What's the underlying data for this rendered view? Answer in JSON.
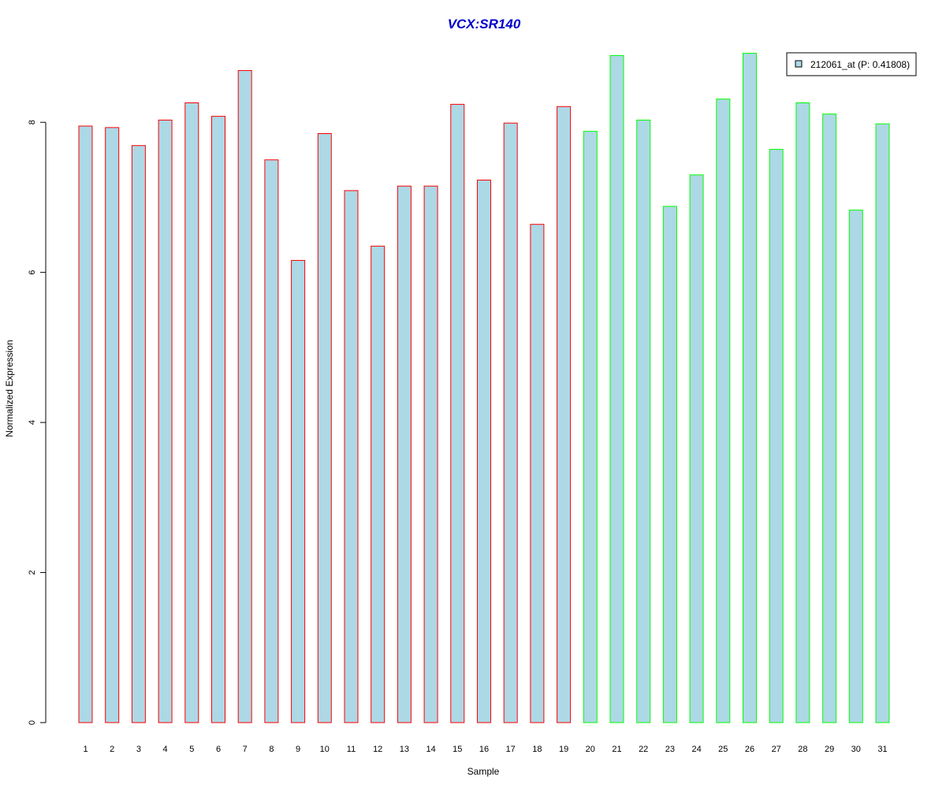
{
  "chart_data": {
    "type": "bar",
    "title": "VCX:SR140",
    "xlabel": "Sample",
    "ylabel": "Normalized Expression",
    "ylim": [
      0,
      9
    ],
    "yticks": [
      0,
      2,
      4,
      6,
      8
    ],
    "grid": false,
    "legend": {
      "label": "212061_at (P: 0.41808)",
      "placement": "top-right",
      "swatch_color": "#add8e6"
    },
    "categories": [
      "1",
      "2",
      "3",
      "4",
      "5",
      "6",
      "7",
      "8",
      "9",
      "10",
      "11",
      "12",
      "13",
      "14",
      "15",
      "16",
      "17",
      "18",
      "19",
      "20",
      "21",
      "22",
      "23",
      "24",
      "25",
      "26",
      "27",
      "28",
      "29",
      "30",
      "31"
    ],
    "series": [
      {
        "values": [
          7.95,
          7.93,
          7.69,
          8.03,
          8.26,
          8.08,
          8.69,
          7.5,
          6.16,
          7.85,
          7.09,
          6.35,
          7.15,
          7.15,
          8.24,
          7.23,
          7.99,
          6.64,
          8.21,
          7.88,
          8.89,
          8.03,
          6.88,
          7.3,
          8.31,
          8.92,
          7.64,
          8.26,
          8.11,
          6.83,
          7.98
        ],
        "fill_color": "#add8e6",
        "group_border_colors": [
          "#ff0000",
          "#ff0000",
          "#ff0000",
          "#ff0000",
          "#ff0000",
          "#ff0000",
          "#ff0000",
          "#ff0000",
          "#ff0000",
          "#ff0000",
          "#ff0000",
          "#ff0000",
          "#ff0000",
          "#ff0000",
          "#ff0000",
          "#ff0000",
          "#ff0000",
          "#ff0000",
          "#ff0000",
          "#00ff00",
          "#00ff00",
          "#00ff00",
          "#00ff00",
          "#00ff00",
          "#00ff00",
          "#00ff00",
          "#00ff00",
          "#00ff00",
          "#00ff00",
          "#00ff00",
          "#00ff00"
        ]
      }
    ],
    "title_color": "#0000cc"
  }
}
